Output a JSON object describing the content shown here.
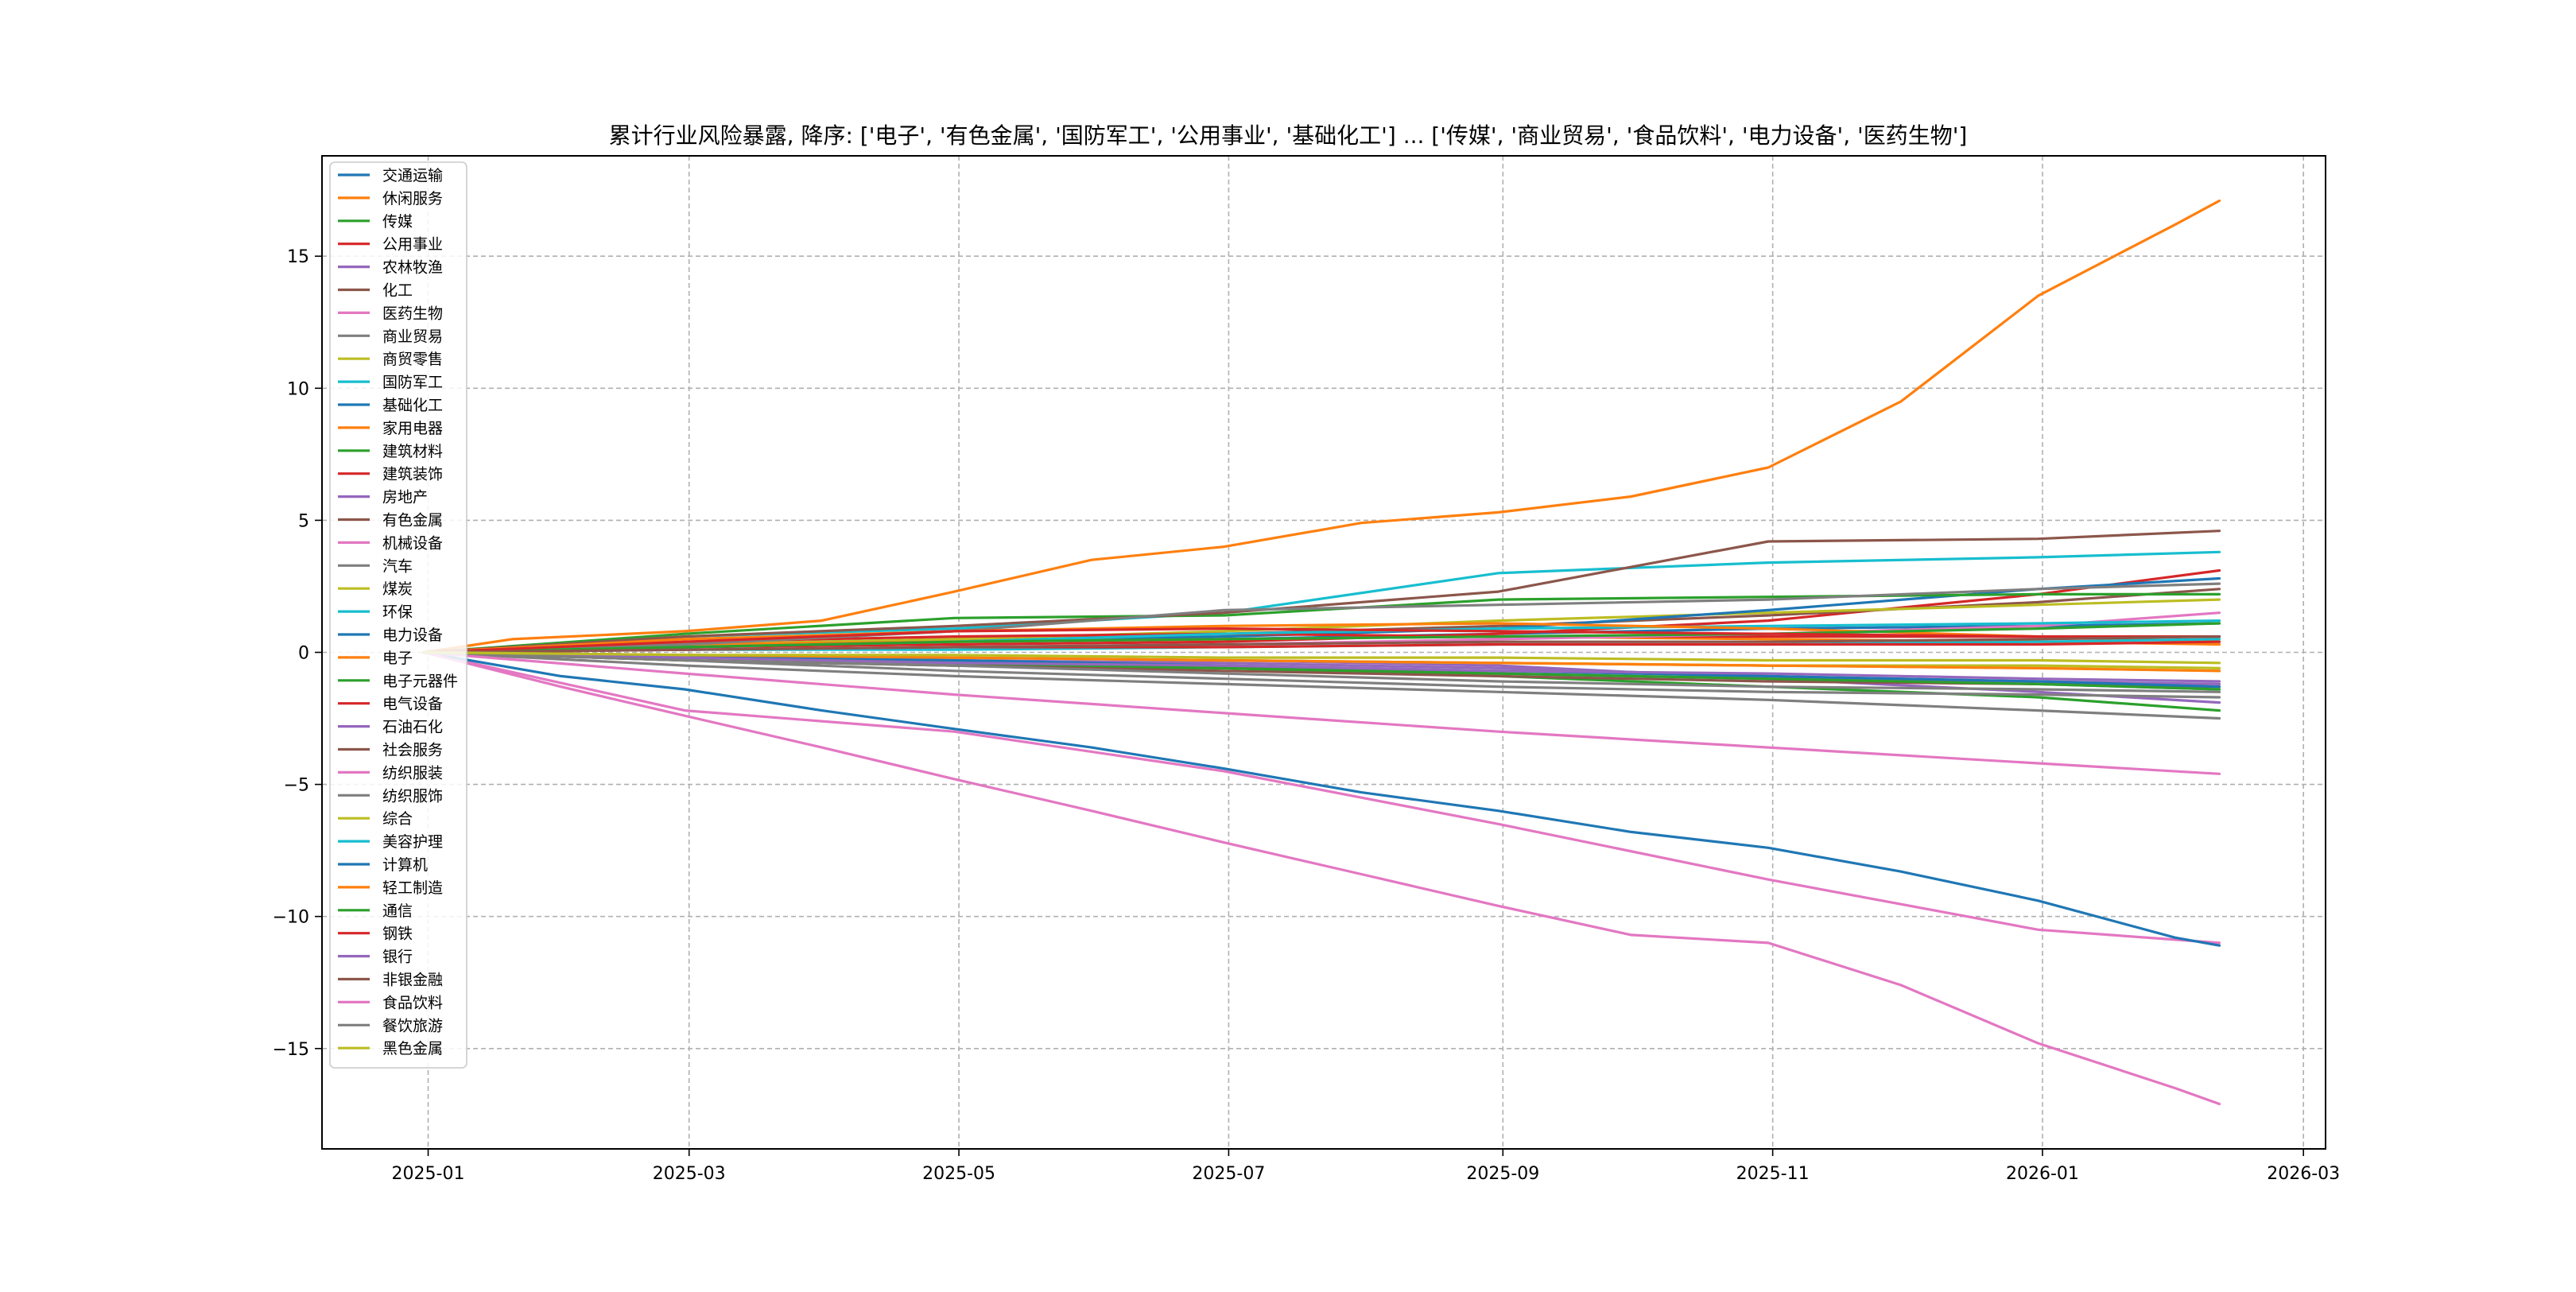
{
  "chart_data": {
    "type": "line",
    "title": "累计行业风险暴露, 降序: ['电子', '有色金属', '国防军工', '公用事业', '基础化工'] ... ['传媒', '商业贸易', '食品饮料', '电力设备', '医药生物']",
    "xlabel": "",
    "ylabel": "",
    "grid": true,
    "legend_position": "upper-left",
    "x_range": [
      "2024-12-08",
      "2026-03-06"
    ],
    "y_range": [
      -18.8,
      18.8
    ],
    "x_ticks": [
      {
        "date": "2025-01-01",
        "label": "2025-01"
      },
      {
        "date": "2025-03-01",
        "label": "2025-03"
      },
      {
        "date": "2025-05-01",
        "label": "2025-05"
      },
      {
        "date": "2025-07-01",
        "label": "2025-07"
      },
      {
        "date": "2025-09-01",
        "label": "2025-09"
      },
      {
        "date": "2025-11-01",
        "label": "2025-11"
      },
      {
        "date": "2026-01-01",
        "label": "2026-01"
      },
      {
        "date": "2026-03-01",
        "label": "2026-03"
      }
    ],
    "y_ticks": [
      {
        "value": 15,
        "label": "15"
      },
      {
        "value": 10,
        "label": "10"
      },
      {
        "value": 5,
        "label": "5"
      },
      {
        "value": 0,
        "label": "0"
      },
      {
        "value": -5,
        "label": "−5"
      },
      {
        "value": -10,
        "label": "−10"
      },
      {
        "value": -15,
        "label": "−15"
      }
    ],
    "series": [
      {
        "name": "交通运输",
        "color": "#1f77b4",
        "x": [
          "2024-12-31",
          "2025-02-28",
          "2025-04-30",
          "2025-06-30",
          "2025-08-31",
          "2025-10-31",
          "2025-12-31",
          "2026-02-10"
        ],
        "values": [
          0,
          0.2,
          0.4,
          0.5,
          0.7,
          0.9,
          1.0,
          1.1
        ]
      },
      {
        "name": "休闲服务",
        "color": "#ff7f0e",
        "x": [
          "2024-12-31",
          "2025-01-20",
          "2025-02-28",
          "2025-03-31",
          "2025-04-30",
          "2025-05-31",
          "2025-06-30",
          "2025-07-31",
          "2025-08-31",
          "2025-09-30",
          "2025-10-31",
          "2025-11-30",
          "2025-12-31",
          "2026-01-31",
          "2026-02-10"
        ],
        "values": [
          0,
          0.5,
          0.8,
          1.2,
          2.3,
          3.5,
          4.0,
          4.9,
          5.3,
          5.9,
          7.0,
          9.5,
          13.5,
          16.2,
          17.1
        ]
      },
      {
        "name": "传媒",
        "color": "#2ca02c",
        "x": [
          "2024-12-31",
          "2025-02-28",
          "2025-04-30",
          "2025-06-30",
          "2025-08-31",
          "2025-10-31",
          "2025-12-31",
          "2026-02-10"
        ],
        "values": [
          0,
          -0.3,
          -0.5,
          -0.6,
          -0.9,
          -1.3,
          -1.7,
          -2.2
        ]
      },
      {
        "name": "公用事业",
        "color": "#d62728",
        "x": [
          "2024-12-31",
          "2025-02-28",
          "2025-04-30",
          "2025-06-30",
          "2025-08-31",
          "2025-10-31",
          "2025-12-31",
          "2026-02-10"
        ],
        "values": [
          0,
          0.2,
          0.3,
          0.4,
          0.7,
          1.2,
          2.2,
          3.1
        ]
      },
      {
        "name": "农林牧渔",
        "color": "#9467bd",
        "x": [
          "2024-12-31",
          "2025-02-28",
          "2025-04-30",
          "2025-06-30",
          "2025-08-31",
          "2025-10-31",
          "2025-12-31",
          "2026-02-10"
        ],
        "values": [
          0,
          -0.1,
          -0.2,
          -0.3,
          -0.5,
          -1.0,
          -1.5,
          -1.9
        ]
      },
      {
        "name": "化工",
        "color": "#8c564b",
        "x": [
          "2024-12-31",
          "2025-02-28",
          "2025-04-30",
          "2025-06-30",
          "2025-08-31",
          "2025-10-31",
          "2025-12-31",
          "2026-02-10"
        ],
        "values": [
          0,
          0.3,
          0.5,
          0.7,
          1.0,
          1.4,
          1.9,
          2.4
        ]
      },
      {
        "name": "医药生物",
        "color": "#e377c2",
        "x": [
          "2024-12-31",
          "2025-02-28",
          "2025-04-30",
          "2025-06-30",
          "2025-08-31",
          "2025-10-31",
          "2025-12-31",
          "2026-02-10"
        ],
        "values": [
          0,
          -2.2,
          -3.0,
          -4.5,
          -6.5,
          -8.6,
          -10.5,
          -11.0
        ]
      },
      {
        "name": "商业贸易",
        "color": "#7f7f7f",
        "x": [
          "2024-12-31",
          "2025-02-28",
          "2025-04-30",
          "2025-06-30",
          "2025-08-31",
          "2025-10-31",
          "2025-12-31",
          "2026-02-10"
        ],
        "values": [
          0,
          -0.5,
          -0.9,
          -1.2,
          -1.5,
          -1.8,
          -2.2,
          -2.5
        ]
      },
      {
        "name": "商贸零售",
        "color": "#bcbd22",
        "x": [
          "2024-12-31",
          "2025-02-28",
          "2025-04-30",
          "2025-06-30",
          "2025-08-31",
          "2025-10-31",
          "2025-12-31",
          "2026-02-10"
        ],
        "values": [
          0,
          0.3,
          0.5,
          0.8,
          1.2,
          1.5,
          1.8,
          2.0
        ]
      },
      {
        "name": "国防军工",
        "color": "#17becf",
        "x": [
          "2024-12-31",
          "2025-02-28",
          "2025-04-30",
          "2025-06-30",
          "2025-08-31",
          "2025-10-31",
          "2025-12-31",
          "2026-02-10"
        ],
        "values": [
          0,
          0.6,
          0.9,
          1.5,
          3.0,
          3.4,
          3.6,
          3.8
        ]
      },
      {
        "name": "基础化工",
        "color": "#1f77b4",
        "x": [
          "2024-12-31",
          "2025-02-28",
          "2025-04-30",
          "2025-06-30",
          "2025-08-31",
          "2025-10-31",
          "2025-12-31",
          "2026-02-10"
        ],
        "values": [
          0,
          0.2,
          0.4,
          0.6,
          0.9,
          1.6,
          2.4,
          2.8
        ]
      },
      {
        "name": "家用电器",
        "color": "#ff7f0e",
        "x": [
          "2024-12-31",
          "2025-02-28",
          "2025-04-30",
          "2025-06-30",
          "2025-08-31",
          "2025-10-31",
          "2025-12-31",
          "2026-02-10"
        ],
        "values": [
          0,
          0.3,
          0.4,
          0.5,
          0.6,
          0.5,
          0.4,
          0.3
        ]
      },
      {
        "name": "建筑材料",
        "color": "#2ca02c",
        "x": [
          "2024-12-31",
          "2025-02-28",
          "2025-04-30",
          "2025-06-30",
          "2025-08-31",
          "2025-10-31",
          "2025-12-31",
          "2026-02-10"
        ],
        "values": [
          0,
          0.7,
          1.3,
          1.4,
          2.0,
          2.1,
          2.2,
          2.2
        ]
      },
      {
        "name": "建筑装饰",
        "color": "#d62728",
        "x": [
          "2024-12-31",
          "2025-02-28",
          "2025-04-30",
          "2025-06-30",
          "2025-08-31",
          "2025-10-31",
          "2025-12-31",
          "2026-02-10"
        ],
        "values": [
          0,
          0.4,
          0.6,
          0.7,
          0.6,
          0.6,
          0.6,
          0.6
        ]
      },
      {
        "name": "房地产",
        "color": "#9467bd",
        "x": [
          "2024-12-31",
          "2025-02-28",
          "2025-04-30",
          "2025-06-30",
          "2025-08-31",
          "2025-10-31",
          "2025-12-31",
          "2026-02-10"
        ],
        "values": [
          0,
          -0.2,
          -0.3,
          -0.4,
          -0.6,
          -0.9,
          -1.2,
          -1.4
        ]
      },
      {
        "name": "有色金属",
        "color": "#8c564b",
        "x": [
          "2024-12-31",
          "2025-02-28",
          "2025-04-30",
          "2025-06-30",
          "2025-08-31",
          "2025-10-31",
          "2025-12-31",
          "2026-02-10"
        ],
        "values": [
          0,
          0.6,
          1.0,
          1.5,
          2.3,
          4.2,
          4.3,
          4.6
        ]
      },
      {
        "name": "机械设备",
        "color": "#e377c2",
        "x": [
          "2024-12-31",
          "2025-02-28",
          "2025-04-30",
          "2025-06-30",
          "2025-08-31",
          "2025-10-31",
          "2025-12-31",
          "2026-02-10"
        ],
        "values": [
          0,
          0.1,
          0.2,
          0.3,
          0.5,
          0.7,
          1.0,
          1.5
        ]
      },
      {
        "name": "汽车",
        "color": "#7f7f7f",
        "x": [
          "2024-12-31",
          "2025-02-28",
          "2025-04-30",
          "2025-06-30",
          "2025-08-31",
          "2025-10-31",
          "2025-12-31",
          "2026-02-10"
        ],
        "values": [
          0,
          0.3,
          0.8,
          1.6,
          1.8,
          2.0,
          2.4,
          2.6
        ]
      },
      {
        "name": "煤炭",
        "color": "#bcbd22",
        "x": [
          "2024-12-31",
          "2025-02-28",
          "2025-04-30",
          "2025-06-30",
          "2025-08-31",
          "2025-10-31",
          "2025-12-31",
          "2026-02-10"
        ],
        "values": [
          0,
          -0.1,
          -0.2,
          -0.3,
          -0.4,
          -0.5,
          -0.6,
          -0.7
        ]
      },
      {
        "name": "环保",
        "color": "#17becf",
        "x": [
          "2024-12-31",
          "2025-02-28",
          "2025-04-30",
          "2025-06-30",
          "2025-08-31",
          "2025-10-31",
          "2025-12-31",
          "2026-02-10"
        ],
        "values": [
          0,
          0.2,
          0.4,
          0.7,
          0.9,
          1.0,
          1.1,
          1.2
        ]
      },
      {
        "name": "电力设备",
        "color": "#1f77b4",
        "x": [
          "2024-12-31",
          "2025-01-31",
          "2025-02-28",
          "2025-03-31",
          "2025-04-30",
          "2025-05-31",
          "2025-06-30",
          "2025-07-31",
          "2025-08-31",
          "2025-09-30",
          "2025-10-31",
          "2025-11-30",
          "2025-12-31",
          "2026-01-31",
          "2026-02-10"
        ],
        "values": [
          0,
          -0.9,
          -1.4,
          -2.2,
          -2.9,
          -3.6,
          -4.4,
          -5.3,
          -6.0,
          -6.8,
          -7.4,
          -8.3,
          -9.4,
          -10.8,
          -11.1
        ]
      },
      {
        "name": "电子",
        "color": "#ff7f0e",
        "x": [
          "2024-12-31",
          "2025-02-28",
          "2025-04-30",
          "2025-06-30",
          "2025-08-31",
          "2025-10-31",
          "2025-12-31",
          "2026-02-10"
        ],
        "values": [
          0,
          0.5,
          0.8,
          1.0,
          1.1,
          0.9,
          0.6,
          0.4
        ]
      },
      {
        "name": "电子元器件",
        "color": "#2ca02c",
        "x": [
          "2024-12-31",
          "2025-02-28",
          "2025-04-30",
          "2025-06-30",
          "2025-08-31",
          "2025-10-31",
          "2025-12-31",
          "2026-02-10"
        ],
        "values": [
          0,
          0.2,
          0.4,
          0.5,
          0.6,
          0.7,
          0.9,
          1.1
        ]
      },
      {
        "name": "电气设备",
        "color": "#d62728",
        "x": [
          "2024-12-31",
          "2025-02-28",
          "2025-04-30",
          "2025-06-30",
          "2025-08-31",
          "2025-10-31",
          "2025-12-31",
          "2026-02-10"
        ],
        "values": [
          0,
          0.4,
          0.8,
          0.9,
          0.8,
          0.7,
          0.6,
          0.6
        ]
      },
      {
        "name": "石油石化",
        "color": "#9467bd",
        "x": [
          "2024-12-31",
          "2025-02-28",
          "2025-04-30",
          "2025-06-30",
          "2025-08-31",
          "2025-10-31",
          "2025-12-31",
          "2026-02-10"
        ],
        "values": [
          0,
          -0.1,
          -0.3,
          -0.5,
          -0.8,
          -1.0,
          -1.1,
          -1.2
        ]
      },
      {
        "name": "社会服务",
        "color": "#8c564b",
        "x": [
          "2024-12-31",
          "2025-02-28",
          "2025-04-30",
          "2025-06-30",
          "2025-08-31",
          "2025-10-31",
          "2025-12-31",
          "2026-02-10"
        ],
        "values": [
          0,
          -0.3,
          -0.5,
          -0.7,
          -0.9,
          -1.1,
          -1.2,
          -1.3
        ]
      },
      {
        "name": "纺织服装",
        "color": "#e377c2",
        "x": [
          "2024-12-31",
          "2025-02-28",
          "2025-04-30",
          "2025-06-30",
          "2025-08-31",
          "2025-10-31",
          "2025-12-31",
          "2026-02-10"
        ],
        "values": [
          0,
          -0.8,
          -1.6,
          -2.3,
          -3.0,
          -3.6,
          -4.2,
          -4.6
        ]
      },
      {
        "name": "纺织服饰",
        "color": "#7f7f7f",
        "x": [
          "2024-12-31",
          "2025-02-28",
          "2025-04-30",
          "2025-06-30",
          "2025-08-31",
          "2025-10-31",
          "2025-12-31",
          "2026-02-10"
        ],
        "values": [
          0,
          -0.3,
          -0.7,
          -1.0,
          -1.3,
          -1.5,
          -1.6,
          -1.7
        ]
      },
      {
        "name": "综合",
        "color": "#bcbd22",
        "x": [
          "2024-12-31",
          "2025-02-28",
          "2025-04-30",
          "2025-06-30",
          "2025-08-31",
          "2025-10-31",
          "2025-12-31",
          "2026-02-10"
        ],
        "values": [
          0,
          -0.1,
          -0.2,
          -0.3,
          -0.4,
          -0.5,
          -0.5,
          -0.6
        ]
      },
      {
        "name": "美容护理",
        "color": "#17becf",
        "x": [
          "2024-12-31",
          "2025-02-28",
          "2025-04-30",
          "2025-06-30",
          "2025-08-31",
          "2025-10-31",
          "2025-12-31",
          "2026-02-10"
        ],
        "values": [
          0,
          0.1,
          0.1,
          0.2,
          0.3,
          0.3,
          0.4,
          0.5
        ]
      },
      {
        "name": "计算机",
        "color": "#1f77b4",
        "x": [
          "2024-12-31",
          "2025-02-28",
          "2025-04-30",
          "2025-06-30",
          "2025-08-31",
          "2025-10-31",
          "2025-12-31",
          "2026-02-10"
        ],
        "values": [
          0,
          -0.2,
          -0.3,
          -0.5,
          -0.7,
          -0.9,
          -1.1,
          -1.3
        ]
      },
      {
        "name": "轻工制造",
        "color": "#ff7f0e",
        "x": [
          "2024-12-31",
          "2025-02-28",
          "2025-04-30",
          "2025-06-30",
          "2025-08-31",
          "2025-10-31",
          "2025-12-31",
          "2026-02-10"
        ],
        "values": [
          0,
          -0.1,
          -0.2,
          -0.3,
          -0.4,
          -0.5,
          -0.6,
          -0.7
        ]
      },
      {
        "name": "通信",
        "color": "#2ca02c",
        "x": [
          "2024-12-31",
          "2025-02-28",
          "2025-04-30",
          "2025-06-30",
          "2025-08-31",
          "2025-10-31",
          "2025-12-31",
          "2026-02-10"
        ],
        "values": [
          0,
          -0.2,
          -0.4,
          -0.6,
          -0.8,
          -1.0,
          -1.2,
          -1.4
        ]
      },
      {
        "name": "钢铁",
        "color": "#d62728",
        "x": [
          "2024-12-31",
          "2025-02-28",
          "2025-04-30",
          "2025-06-30",
          "2025-08-31",
          "2025-10-31",
          "2025-12-31",
          "2026-02-10"
        ],
        "values": [
          0,
          0.1,
          0.2,
          0.2,
          0.3,
          0.3,
          0.3,
          0.4
        ]
      },
      {
        "name": "银行",
        "color": "#9467bd",
        "x": [
          "2024-12-31",
          "2025-02-28",
          "2025-04-30",
          "2025-06-30",
          "2025-08-31",
          "2025-10-31",
          "2025-12-31",
          "2026-02-10"
        ],
        "values": [
          0,
          -0.2,
          -0.4,
          -0.5,
          -0.7,
          -0.8,
          -1.0,
          -1.1
        ]
      },
      {
        "name": "非银金融",
        "color": "#8c564b",
        "x": [
          "2024-12-31",
          "2025-02-28",
          "2025-04-30",
          "2025-06-30",
          "2025-08-31",
          "2025-10-31",
          "2025-12-31",
          "2026-02-10"
        ],
        "values": [
          0,
          0.1,
          0.2,
          0.3,
          0.4,
          0.4,
          0.5,
          0.6
        ]
      },
      {
        "name": "食品饮料",
        "color": "#e377c2",
        "x": [
          "2024-12-31",
          "2025-01-31",
          "2025-02-28",
          "2025-03-31",
          "2025-04-30",
          "2025-05-31",
          "2025-06-30",
          "2025-07-31",
          "2025-08-31",
          "2025-09-30",
          "2025-10-31",
          "2025-11-30",
          "2025-12-31",
          "2026-01-31",
          "2026-02-10"
        ],
        "values": [
          0,
          -1.3,
          -2.4,
          -3.6,
          -4.8,
          -6.0,
          -7.2,
          -8.4,
          -9.6,
          -10.7,
          -11.0,
          -12.6,
          -14.8,
          -16.5,
          -17.1
        ]
      },
      {
        "name": "餐饮旅游",
        "color": "#7f7f7f",
        "x": [
          "2024-12-31",
          "2025-02-28",
          "2025-04-30",
          "2025-06-30",
          "2025-08-31",
          "2025-10-31",
          "2025-12-31",
          "2026-02-10"
        ],
        "values": [
          0,
          -0.3,
          -0.5,
          -0.8,
          -1.1,
          -1.3,
          -1.4,
          -1.5
        ]
      },
      {
        "name": "黑色金属",
        "color": "#bcbd22",
        "x": [
          "2024-12-31",
          "2025-02-28",
          "2025-04-30",
          "2025-06-30",
          "2025-08-31",
          "2025-10-31",
          "2025-12-31",
          "2026-02-10"
        ],
        "values": [
          0,
          -0.1,
          -0.1,
          -0.2,
          -0.2,
          -0.3,
          -0.3,
          -0.4
        ]
      }
    ]
  }
}
